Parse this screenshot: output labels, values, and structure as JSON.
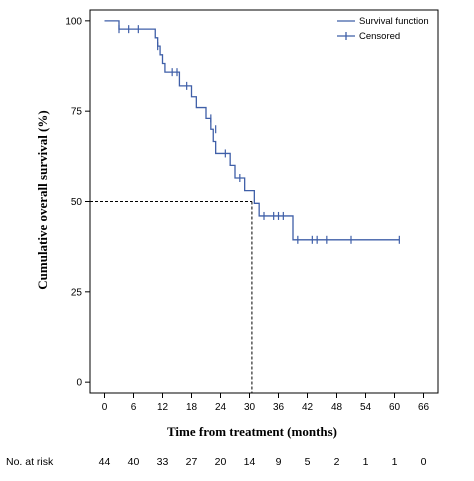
{
  "chart_data": {
    "type": "line",
    "subtype": "kaplan-meier",
    "title": "",
    "xlabel": "Time from treatment (months)",
    "ylabel": "Cumulative overall survival (%)",
    "xlim": [
      -3,
      69
    ],
    "ylim": [
      -3,
      103
    ],
    "xticks": [
      0,
      6,
      12,
      18,
      24,
      30,
      36,
      42,
      48,
      54,
      60,
      66
    ],
    "yticks": [
      0,
      25,
      50,
      75,
      100
    ],
    "grid": false,
    "legend_position": "top-right",
    "legend": [
      "Survival function",
      "Censored"
    ],
    "line_color": "#3f5fa8",
    "series": [
      {
        "name": "Survival function",
        "steps": [
          [
            0,
            100
          ],
          [
            3,
            97.7
          ],
          [
            10.5,
            95.3
          ],
          [
            11,
            93
          ],
          [
            11.5,
            90.6
          ],
          [
            12,
            88.2
          ],
          [
            12.5,
            85.8
          ],
          [
            14,
            85.8
          ],
          [
            15.5,
            82
          ],
          [
            18,
            79
          ],
          [
            19,
            76
          ],
          [
            21,
            73
          ],
          [
            22,
            70
          ],
          [
            22.5,
            66.6
          ],
          [
            23,
            63.3
          ],
          [
            26,
            60
          ],
          [
            27,
            56.5
          ],
          [
            29,
            53
          ],
          [
            31,
            49.5
          ],
          [
            32,
            46
          ],
          [
            38,
            46
          ],
          [
            39,
            39.4
          ],
          [
            61,
            39.4
          ]
        ]
      },
      {
        "name": "Censored",
        "points": [
          [
            3,
            97.7
          ],
          [
            5,
            97.7
          ],
          [
            7,
            97.7
          ],
          [
            11,
            93
          ],
          [
            14,
            85.8
          ],
          [
            15,
            85.8
          ],
          [
            17,
            82
          ],
          [
            22,
            73
          ],
          [
            23,
            70
          ],
          [
            25,
            63.3
          ],
          [
            28,
            56.5
          ],
          [
            33,
            46
          ],
          [
            35,
            46
          ],
          [
            36,
            46
          ],
          [
            37,
            46
          ],
          [
            40,
            39.4
          ],
          [
            43,
            39.4
          ],
          [
            44,
            39.4
          ],
          [
            46,
            39.4
          ],
          [
            51,
            39.4
          ],
          [
            61,
            39.4
          ]
        ]
      }
    ],
    "reference_lines": {
      "median_survival_months": 30.5,
      "survival_level": 50
    }
  },
  "risk_table": {
    "label": "No. at risk",
    "values": [
      "44",
      "40",
      "33",
      "27",
      "20",
      "14",
      "9",
      "5",
      "2",
      "1",
      "1",
      "0"
    ]
  },
  "legend_labels": {
    "survival": "Survival function",
    "censored": "Censored"
  },
  "axis_titles": {
    "x": "Time from treatment (months)",
    "y": "Cumulative overall survival (%)"
  }
}
